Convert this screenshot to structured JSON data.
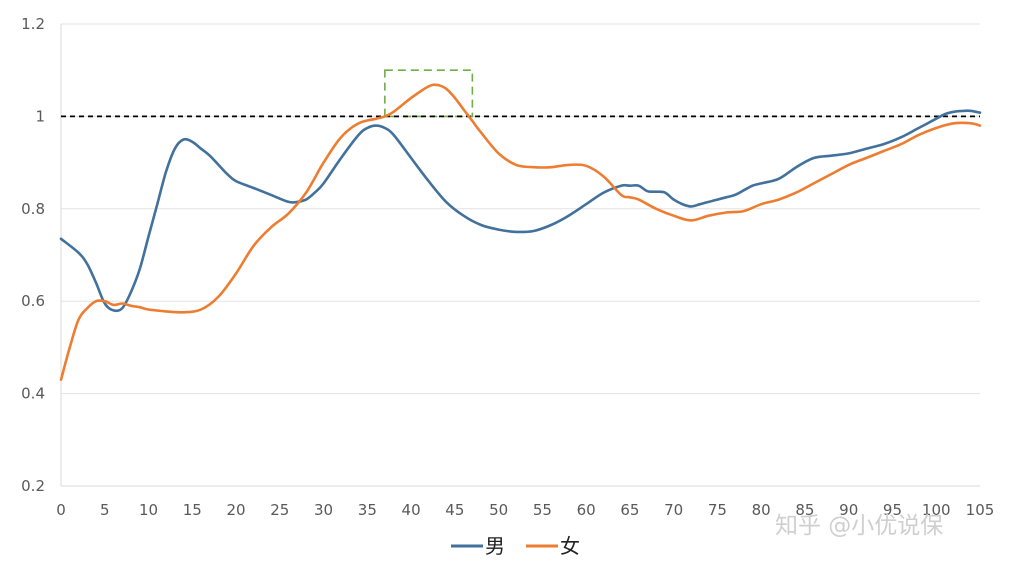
{
  "chart_data": {
    "type": "line",
    "xlim": [
      0,
      105
    ],
    "ylim": [
      0.2,
      1.2
    ],
    "x_ticks": [
      "0",
      "5",
      "10",
      "15",
      "20",
      "25",
      "30",
      "35",
      "40",
      "45",
      "50",
      "55",
      "60",
      "65",
      "70",
      "75",
      "80",
      "85",
      "90",
      "95",
      "100",
      "105"
    ],
    "y_ticks": [
      "1.2",
      "1",
      "0.8",
      "0.6",
      "0.4",
      "0.2"
    ],
    "grid": "horizontal",
    "legend_position": "bottom",
    "reference_line": {
      "y": 1.0,
      "style": "dashed"
    },
    "highlight_box": {
      "x": [
        37,
        47
      ],
      "y": [
        1.0,
        1.1
      ],
      "color": "#70AD47"
    },
    "series": [
      {
        "name": "男",
        "color": "#41719C",
        "x": [
          0,
          2,
          3,
          4,
          5,
          6,
          7,
          8,
          9,
          10,
          11,
          12,
          13,
          14,
          15,
          16,
          17,
          18,
          19,
          20,
          22,
          24,
          26,
          27,
          28,
          29,
          30,
          32,
          34,
          35,
          36,
          37,
          38,
          40,
          42,
          44,
          46,
          48,
          50,
          52,
          54,
          56,
          58,
          60,
          62,
          64,
          65,
          66,
          67,
          68,
          69,
          70,
          71,
          72,
          73,
          74,
          75,
          76,
          77,
          78,
          79,
          80,
          82,
          84,
          86,
          88,
          90,
          92,
          94,
          96,
          98,
          100,
          101,
          102,
          103,
          104,
          105
        ],
        "y": [
          0.735,
          0.705,
          0.68,
          0.64,
          0.595,
          0.58,
          0.585,
          0.62,
          0.67,
          0.74,
          0.81,
          0.88,
          0.93,
          0.95,
          0.945,
          0.93,
          0.915,
          0.895,
          0.875,
          0.86,
          0.845,
          0.83,
          0.815,
          0.815,
          0.82,
          0.835,
          0.855,
          0.91,
          0.96,
          0.975,
          0.98,
          0.975,
          0.96,
          0.91,
          0.86,
          0.815,
          0.785,
          0.765,
          0.755,
          0.75,
          0.752,
          0.765,
          0.785,
          0.81,
          0.835,
          0.85,
          0.85,
          0.85,
          0.838,
          0.837,
          0.835,
          0.82,
          0.81,
          0.805,
          0.81,
          0.815,
          0.82,
          0.825,
          0.83,
          0.84,
          0.85,
          0.855,
          0.865,
          0.89,
          0.91,
          0.915,
          0.92,
          0.93,
          0.94,
          0.955,
          0.975,
          0.995,
          1.005,
          1.01,
          1.012,
          1.012,
          1.008
        ]
      },
      {
        "name": "女",
        "color": "#ED7D31",
        "x": [
          0,
          1,
          2,
          3,
          4,
          5,
          6,
          7,
          8,
          9,
          10,
          12,
          14,
          16,
          18,
          20,
          22,
          24,
          26,
          28,
          30,
          32,
          34,
          36,
          37,
          38,
          40,
          42,
          43,
          44,
          45,
          46,
          47,
          48,
          50,
          52,
          54,
          56,
          58,
          60,
          62,
          64,
          65,
          66,
          68,
          70,
          72,
          74,
          76,
          78,
          80,
          82,
          84,
          86,
          88,
          90,
          92,
          94,
          96,
          98,
          100,
          102,
          104,
          105
        ],
        "y": [
          0.43,
          0.5,
          0.56,
          0.585,
          0.6,
          0.6,
          0.592,
          0.595,
          0.59,
          0.587,
          0.582,
          0.578,
          0.576,
          0.582,
          0.61,
          0.66,
          0.72,
          0.76,
          0.79,
          0.835,
          0.9,
          0.955,
          0.985,
          0.995,
          1.0,
          1.01,
          1.04,
          1.065,
          1.068,
          1.06,
          1.04,
          1.015,
          0.99,
          0.965,
          0.92,
          0.895,
          0.89,
          0.89,
          0.895,
          0.893,
          0.87,
          0.83,
          0.825,
          0.82,
          0.8,
          0.785,
          0.775,
          0.785,
          0.792,
          0.795,
          0.81,
          0.82,
          0.835,
          0.855,
          0.875,
          0.895,
          0.91,
          0.925,
          0.94,
          0.96,
          0.975,
          0.985,
          0.985,
          0.98
        ]
      }
    ]
  },
  "watermark": "知乎 @小优说保"
}
